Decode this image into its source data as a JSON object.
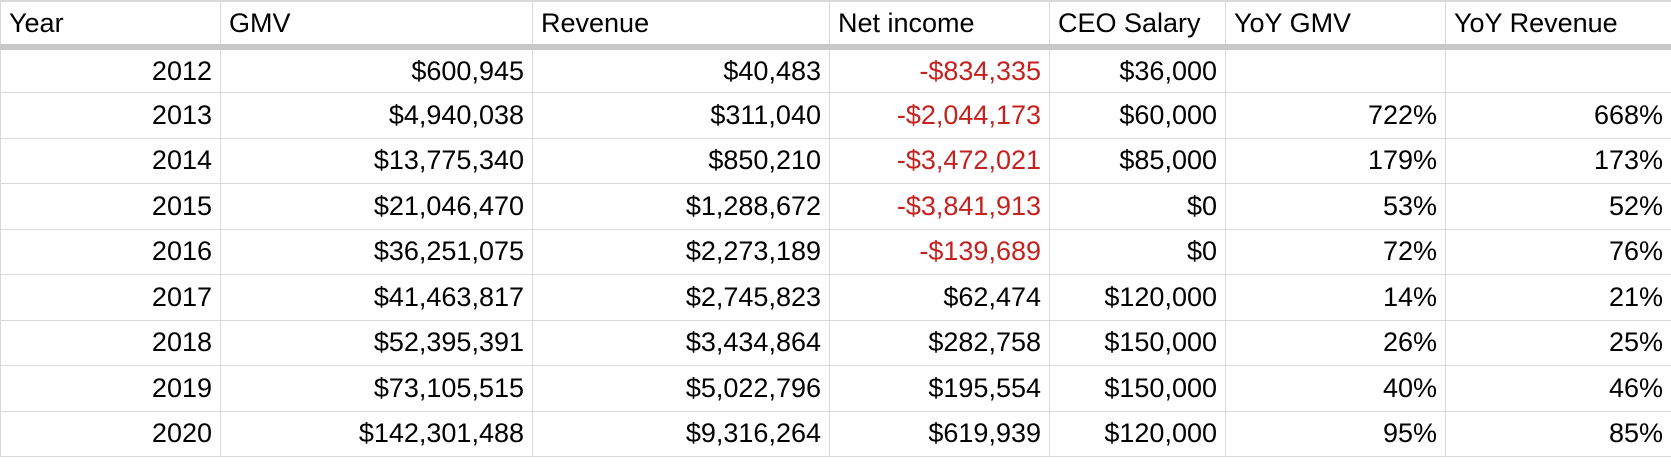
{
  "headers": {
    "year": "Year",
    "gmv": "GMV",
    "revenue": "Revenue",
    "net_income": "Net income",
    "ceo_salary": "CEO Salary",
    "yoy_gmv": "YoY GMV",
    "yoy_revenue": "YoY Revenue"
  },
  "rows": [
    {
      "year": "2012",
      "gmv": "$600,945",
      "revenue": "$40,483",
      "net_income": "-$834,335",
      "ceo_salary": "$36,000",
      "yoy_gmv": "",
      "yoy_revenue": ""
    },
    {
      "year": "2013",
      "gmv": "$4,940,038",
      "revenue": "$311,040",
      "net_income": "-$2,044,173",
      "ceo_salary": "$60,000",
      "yoy_gmv": "722%",
      "yoy_revenue": "668%"
    },
    {
      "year": "2014",
      "gmv": "$13,775,340",
      "revenue": "$850,210",
      "net_income": "-$3,472,021",
      "ceo_salary": "$85,000",
      "yoy_gmv": "179%",
      "yoy_revenue": "173%"
    },
    {
      "year": "2015",
      "gmv": "$21,046,470",
      "revenue": "$1,288,672",
      "net_income": "-$3,841,913",
      "ceo_salary": "$0",
      "yoy_gmv": "53%",
      "yoy_revenue": "52%"
    },
    {
      "year": "2016",
      "gmv": "$36,251,075",
      "revenue": "$2,273,189",
      "net_income": "-$139,689",
      "ceo_salary": "$0",
      "yoy_gmv": "72%",
      "yoy_revenue": "76%"
    },
    {
      "year": "2017",
      "gmv": "$41,463,817",
      "revenue": "$2,745,823",
      "net_income": "$62,474",
      "ceo_salary": "$120,000",
      "yoy_gmv": "14%",
      "yoy_revenue": "21%"
    },
    {
      "year": "2018",
      "gmv": "$52,395,391",
      "revenue": "$3,434,864",
      "net_income": "$282,758",
      "ceo_salary": "$150,000",
      "yoy_gmv": "26%",
      "yoy_revenue": "25%"
    },
    {
      "year": "2019",
      "gmv": "$73,105,515",
      "revenue": "$5,022,796",
      "net_income": "$195,554",
      "ceo_salary": "$150,000",
      "yoy_gmv": "40%",
      "yoy_revenue": "46%"
    },
    {
      "year": "2020",
      "gmv": "$142,301,488",
      "revenue": "$9,316,264",
      "net_income": "$619,939",
      "ceo_salary": "$120,000",
      "yoy_gmv": "95%",
      "yoy_revenue": "85%"
    }
  ],
  "colors": {
    "negative": "#c5221f",
    "grid": "#d9d9d9",
    "header_separator": "#c8c8c8"
  }
}
